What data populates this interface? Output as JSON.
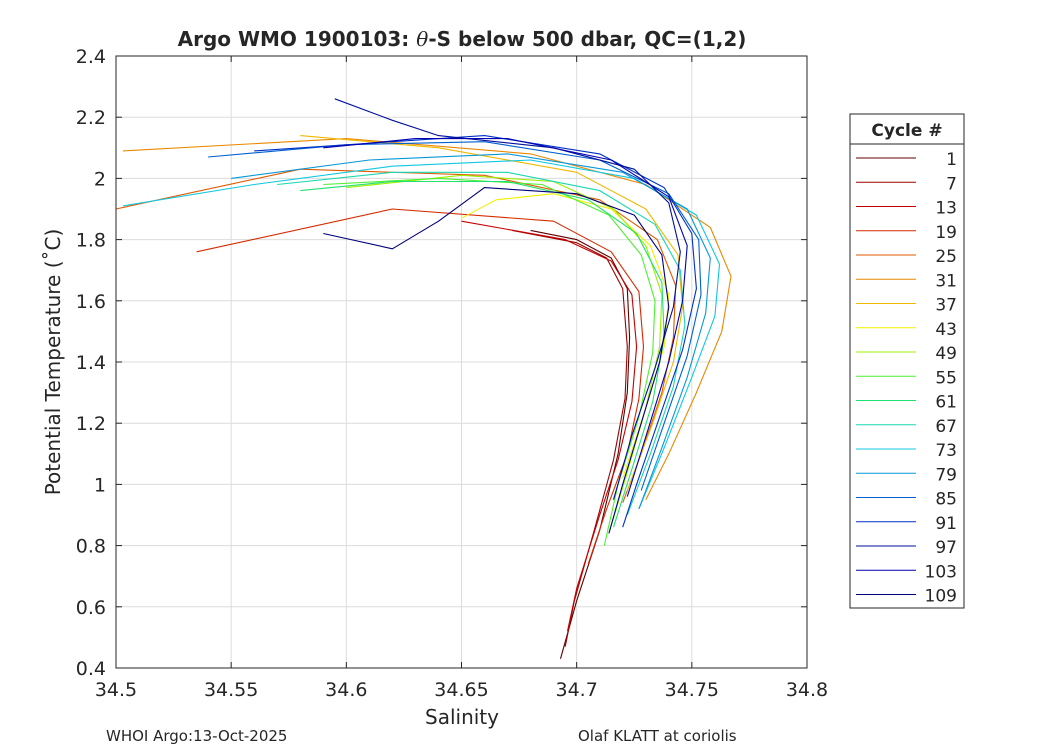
{
  "chart_data": {
    "type": "line",
    "title_parts": [
      "Argo WMO 1900103: ",
      "θ",
      "-S below 500 dbar,  QC=(1,2)"
    ],
    "xlabel": "Salinity",
    "ylabel": "Potential Temperature (˚C)",
    "xlim": [
      34.5,
      34.8
    ],
    "ylim": [
      0.4,
      2.4
    ],
    "xticks": [
      34.5,
      34.55,
      34.6,
      34.65,
      34.7,
      34.75,
      34.8
    ],
    "xtick_labels": [
      "34.5",
      "34.55",
      "34.6",
      "34.65",
      "34.7",
      "34.75",
      "34.8"
    ],
    "yticks": [
      0.4,
      0.6,
      0.8,
      1.0,
      1.2,
      1.4,
      1.6,
      1.8,
      2.0,
      2.2,
      2.4
    ],
    "ytick_labels": [
      "0.4",
      "0.6",
      "0.8",
      "1",
      "1.2",
      "1.4",
      "1.6",
      "1.8",
      "2",
      "2.2",
      "2.4"
    ],
    "grid": true,
    "legend": {
      "title": "Cycle #",
      "position": "right",
      "entries": [
        {
          "label": "1",
          "color": "#5e0000"
        },
        {
          "label": "7",
          "color": "#9c0000"
        },
        {
          "label": "13",
          "color": "#c40000"
        },
        {
          "label": "19",
          "color": "#d42a00"
        },
        {
          "label": "25",
          "color": "#df5a00"
        },
        {
          "label": "31",
          "color": "#e98800"
        },
        {
          "label": "37",
          "color": "#f0b800"
        },
        {
          "label": "43",
          "color": "#f2f000"
        },
        {
          "label": "49",
          "color": "#9cf000"
        },
        {
          "label": "55",
          "color": "#4ef030"
        },
        {
          "label": "61",
          "color": "#20e070"
        },
        {
          "label": "67",
          "color": "#18d8b0"
        },
        {
          "label": "73",
          "color": "#10c8e0"
        },
        {
          "label": "79",
          "color": "#0898d8"
        },
        {
          "label": "85",
          "color": "#0060d0"
        },
        {
          "label": "91",
          "color": "#0030c8"
        },
        {
          "label": "97",
          "color": "#00109a"
        },
        {
          "label": "103",
          "color": "#0000b0"
        },
        {
          "label": "109",
          "color": "#00007a"
        }
      ]
    },
    "series": [
      {
        "name": "1",
        "color": "#5e0000",
        "points": [
          [
            34.68,
            1.83
          ],
          [
            34.7,
            1.8
          ],
          [
            34.715,
            1.74
          ],
          [
            34.722,
            1.64
          ],
          [
            34.723,
            1.48
          ],
          [
            34.722,
            1.3
          ],
          [
            34.718,
            1.1
          ],
          [
            34.71,
            0.85
          ],
          [
            34.7,
            0.62
          ],
          [
            34.693,
            0.43
          ]
        ]
      },
      {
        "name": "7",
        "color": "#9c0000",
        "points": [
          [
            34.672,
            1.83
          ],
          [
            34.7,
            1.79
          ],
          [
            34.713,
            1.74
          ],
          [
            34.72,
            1.64
          ],
          [
            34.722,
            1.45
          ],
          [
            34.721,
            1.28
          ],
          [
            34.716,
            1.08
          ],
          [
            34.708,
            0.86
          ],
          [
            34.699,
            0.62
          ],
          [
            34.695,
            0.47
          ]
        ]
      },
      {
        "name": "13",
        "color": "#c40000",
        "points": [
          [
            34.65,
            1.86
          ],
          [
            34.695,
            1.8
          ],
          [
            34.715,
            1.73
          ],
          [
            34.724,
            1.62
          ],
          [
            34.726,
            1.45
          ],
          [
            34.724,
            1.27
          ],
          [
            34.718,
            1.08
          ],
          [
            34.71,
            0.9
          ],
          [
            34.7,
            0.66
          ],
          [
            34.696,
            0.52
          ]
        ]
      },
      {
        "name": "19",
        "color": "#d42a00",
        "points": [
          [
            34.535,
            1.76
          ],
          [
            34.62,
            1.9
          ],
          [
            34.69,
            1.86
          ],
          [
            34.715,
            1.76
          ],
          [
            34.727,
            1.63
          ],
          [
            34.729,
            1.45
          ],
          [
            34.727,
            1.28
          ],
          [
            34.722,
            1.1
          ],
          [
            34.713,
            0.92
          ],
          [
            34.705,
            0.74
          ]
        ]
      },
      {
        "name": "25",
        "color": "#df5a00",
        "points": [
          [
            34.5,
            1.9
          ],
          [
            34.58,
            2.03
          ],
          [
            34.66,
            2.01
          ],
          [
            34.71,
            1.93
          ],
          [
            34.735,
            1.8
          ],
          [
            34.743,
            1.65
          ],
          [
            34.742,
            1.48
          ],
          [
            34.737,
            1.3
          ],
          [
            34.728,
            1.1
          ],
          [
            34.72,
            0.94
          ]
        ]
      },
      {
        "name": "31",
        "color": "#e98800",
        "points": [
          [
            34.503,
            2.09
          ],
          [
            34.6,
            2.13
          ],
          [
            34.68,
            2.08
          ],
          [
            34.73,
            1.98
          ],
          [
            34.758,
            1.84
          ],
          [
            34.767,
            1.68
          ],
          [
            34.763,
            1.5
          ],
          [
            34.752,
            1.3
          ],
          [
            34.74,
            1.1
          ],
          [
            34.73,
            0.95
          ]
        ]
      },
      {
        "name": "37",
        "color": "#f0b800",
        "points": [
          [
            34.58,
            2.14
          ],
          [
            34.64,
            2.1
          ],
          [
            34.7,
            2.02
          ],
          [
            34.73,
            1.9
          ],
          [
            34.744,
            1.75
          ],
          [
            34.746,
            1.58
          ],
          [
            34.742,
            1.4
          ],
          [
            34.733,
            1.2
          ],
          [
            34.722,
            0.98
          ]
        ]
      },
      {
        "name": "43",
        "color": "#f2f000",
        "points": [
          [
            34.65,
            1.87
          ],
          [
            34.665,
            1.93
          ],
          [
            34.69,
            1.95
          ],
          [
            34.715,
            1.9
          ],
          [
            34.732,
            1.78
          ],
          [
            34.74,
            1.62
          ],
          [
            34.738,
            1.45
          ],
          [
            34.73,
            1.25
          ],
          [
            34.72,
            1.02
          ]
        ]
      },
      {
        "name": "49",
        "color": "#9cf000",
        "points": [
          [
            34.6,
            1.97
          ],
          [
            34.65,
            2.01
          ],
          [
            34.69,
            1.99
          ],
          [
            34.716,
            1.9
          ],
          [
            34.73,
            1.78
          ],
          [
            34.737,
            1.62
          ],
          [
            34.736,
            1.45
          ],
          [
            34.73,
            1.25
          ],
          [
            34.722,
            1.04
          ],
          [
            34.714,
            0.84
          ]
        ]
      },
      {
        "name": "55",
        "color": "#4ef030",
        "points": [
          [
            34.59,
            1.98
          ],
          [
            34.64,
            2.0
          ],
          [
            34.685,
            1.98
          ],
          [
            34.714,
            1.88
          ],
          [
            34.728,
            1.75
          ],
          [
            34.734,
            1.6
          ],
          [
            34.733,
            1.43
          ],
          [
            34.727,
            1.22
          ],
          [
            34.718,
            1.0
          ],
          [
            34.712,
            0.8
          ]
        ]
      },
      {
        "name": "61",
        "color": "#20e070",
        "points": [
          [
            34.58,
            1.96
          ],
          [
            34.62,
            1.99
          ],
          [
            34.67,
            1.99
          ],
          [
            34.705,
            1.93
          ],
          [
            34.726,
            1.82
          ],
          [
            34.737,
            1.66
          ],
          [
            34.738,
            1.48
          ],
          [
            34.733,
            1.27
          ],
          [
            34.724,
            1.05
          ],
          [
            34.716,
            0.86
          ]
        ]
      },
      {
        "name": "67",
        "color": "#18d8b0",
        "points": [
          [
            34.57,
            1.98
          ],
          [
            34.62,
            2.02
          ],
          [
            34.67,
            2.02
          ],
          [
            34.71,
            1.96
          ],
          [
            34.734,
            1.85
          ],
          [
            34.745,
            1.7
          ],
          [
            34.747,
            1.52
          ],
          [
            34.742,
            1.32
          ],
          [
            34.732,
            1.1
          ],
          [
            34.722,
            0.9
          ]
        ]
      },
      {
        "name": "73",
        "color": "#10c8e0",
        "points": [
          [
            34.503,
            1.91
          ],
          [
            34.56,
            1.98
          ],
          [
            34.62,
            2.04
          ],
          [
            34.68,
            2.06
          ],
          [
            34.725,
            2.0
          ],
          [
            34.752,
            1.88
          ],
          [
            34.762,
            1.72
          ],
          [
            34.76,
            1.55
          ],
          [
            34.75,
            1.35
          ],
          [
            34.738,
            1.12
          ],
          [
            34.727,
            0.92
          ]
        ]
      },
      {
        "name": "79",
        "color": "#0898d8",
        "points": [
          [
            34.55,
            2.0
          ],
          [
            34.61,
            2.06
          ],
          [
            34.67,
            2.08
          ],
          [
            34.72,
            2.02
          ],
          [
            34.748,
            1.9
          ],
          [
            34.758,
            1.74
          ],
          [
            34.756,
            1.56
          ],
          [
            34.748,
            1.35
          ],
          [
            34.737,
            1.12
          ],
          [
            34.727,
            0.92
          ]
        ]
      },
      {
        "name": "85",
        "color": "#0060d0",
        "points": [
          [
            34.54,
            2.07
          ],
          [
            34.6,
            2.11
          ],
          [
            34.66,
            2.12
          ],
          [
            34.71,
            2.06
          ],
          [
            34.74,
            1.95
          ],
          [
            34.753,
            1.8
          ],
          [
            34.754,
            1.62
          ],
          [
            34.748,
            1.42
          ],
          [
            34.738,
            1.2
          ],
          [
            34.728,
            0.98
          ]
        ]
      },
      {
        "name": "91",
        "color": "#0030c8",
        "points": [
          [
            34.56,
            2.09
          ],
          [
            34.62,
            2.12
          ],
          [
            34.66,
            2.14
          ],
          [
            34.71,
            2.08
          ],
          [
            34.738,
            1.97
          ],
          [
            34.75,
            1.82
          ],
          [
            34.752,
            1.64
          ],
          [
            34.746,
            1.44
          ],
          [
            34.736,
            1.22
          ],
          [
            34.726,
            1.0
          ],
          [
            34.72,
            0.86
          ]
        ]
      },
      {
        "name": "97",
        "color": "#00109a",
        "points": [
          [
            34.595,
            2.26
          ],
          [
            34.62,
            2.19
          ],
          [
            34.64,
            2.14
          ],
          [
            34.69,
            2.1
          ],
          [
            34.725,
            2.03
          ],
          [
            34.74,
            1.92
          ],
          [
            34.745,
            1.76
          ],
          [
            34.742,
            1.58
          ],
          [
            34.734,
            1.38
          ],
          [
            34.724,
            1.16
          ],
          [
            34.716,
            0.95
          ]
        ]
      },
      {
        "name": "103",
        "color": "#0000b0",
        "points": [
          [
            34.59,
            2.1
          ],
          [
            34.63,
            2.13
          ],
          [
            34.67,
            2.13
          ],
          [
            34.715,
            2.06
          ],
          [
            34.74,
            1.94
          ],
          [
            34.748,
            1.78
          ],
          [
            34.746,
            1.6
          ],
          [
            34.74,
            1.4
          ],
          [
            34.731,
            1.18
          ],
          [
            34.722,
            0.96
          ]
        ]
      },
      {
        "name": "109",
        "color": "#00007a",
        "points": [
          [
            34.59,
            1.82
          ],
          [
            34.62,
            1.77
          ],
          [
            34.64,
            1.86
          ],
          [
            34.66,
            1.97
          ],
          [
            34.7,
            1.95
          ],
          [
            34.725,
            1.88
          ],
          [
            34.737,
            1.75
          ],
          [
            34.74,
            1.58
          ],
          [
            34.736,
            1.4
          ],
          [
            34.728,
            1.2
          ],
          [
            34.72,
            1.0
          ],
          [
            34.714,
            0.84
          ]
        ]
      }
    ]
  },
  "footer": {
    "left": "WHOI Argo:13-Oct-2025",
    "right": "Olaf KLATT at coriolis"
  }
}
